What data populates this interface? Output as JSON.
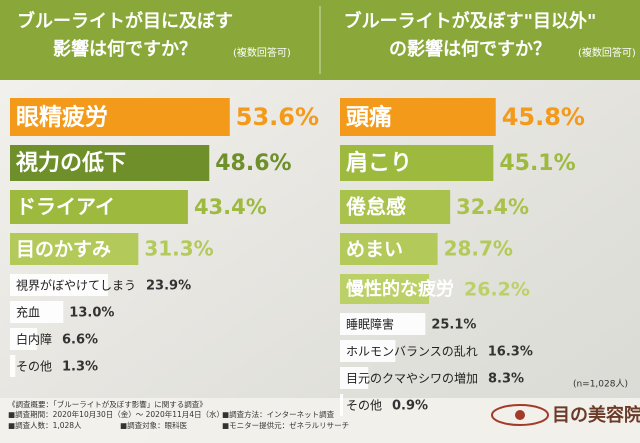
{
  "chart_data": [
    {
      "type": "bar",
      "orientation": "horizontal",
      "title": [
        "ブルーライトが目に及ぼす",
        "影響は何ですか？"
      ],
      "subtitle": "(複数回答可)",
      "categories": [
        "眼精疲労",
        "視力の低下",
        "ドライアイ",
        "目のかすみ",
        "視界がぼやけてしまう",
        "充血",
        "白内障",
        "その他"
      ],
      "values": [
        53.6,
        48.6,
        43.4,
        31.3,
        23.9,
        13.0,
        6.6,
        1.3
      ],
      "value_labels": [
        "53.6%",
        "48.6%",
        "43.4%",
        "31.3%",
        "23.9%",
        "13.0%",
        "6.6%",
        "1.3%"
      ],
      "colors": [
        "#f39a1b",
        "#6f8f2a",
        "#9dba3e",
        "#b3ca5a",
        "#ffffff",
        "#ffffff",
        "#ffffff",
        "#ffffff"
      ]
    },
    {
      "type": "bar",
      "orientation": "horizontal",
      "title": [
        "ブルーライトが及ぼす\"目以外\"",
        "の影響は何ですか？"
      ],
      "subtitle": "(複数回答可)",
      "categories": [
        "頭痛",
        "肩こり",
        "倦怠感",
        "めまい",
        "慢性的な疲労",
        "睡眠障害",
        "ホルモンバランスの乱れ",
        "目元のクマやシワの増加",
        "その他"
      ],
      "values": [
        45.8,
        45.1,
        32.4,
        28.7,
        26.2,
        25.1,
        16.3,
        8.3,
        0.9
      ],
      "value_labels": [
        "45.8%",
        "45.1%",
        "32.4%",
        "28.7%",
        "26.2%",
        "25.1%",
        "16.3%",
        "8.3%",
        "0.9%"
      ],
      "colors": [
        "#f39a1b",
        "#9dba3e",
        "#a9c24c",
        "#b3ca5a",
        "#bcd068",
        "#ffffff",
        "#ffffff",
        "#ffffff",
        "#ffffff"
      ]
    }
  ],
  "note": "(n=1,028人)",
  "footer": [
    "《調査概要：「ブルーライトが及ぼす影響」に関する調査》",
    "■調査期間：2020年10月30日（金）～ 2020年11月4日（水）",
    "■調査方法：インターネット調査",
    "■調査人数：1,028人",
    "■調査対象：眼科医",
    "■モニター提供元：ゼネラルリサーチ"
  ],
  "logo": "目の美容院"
}
